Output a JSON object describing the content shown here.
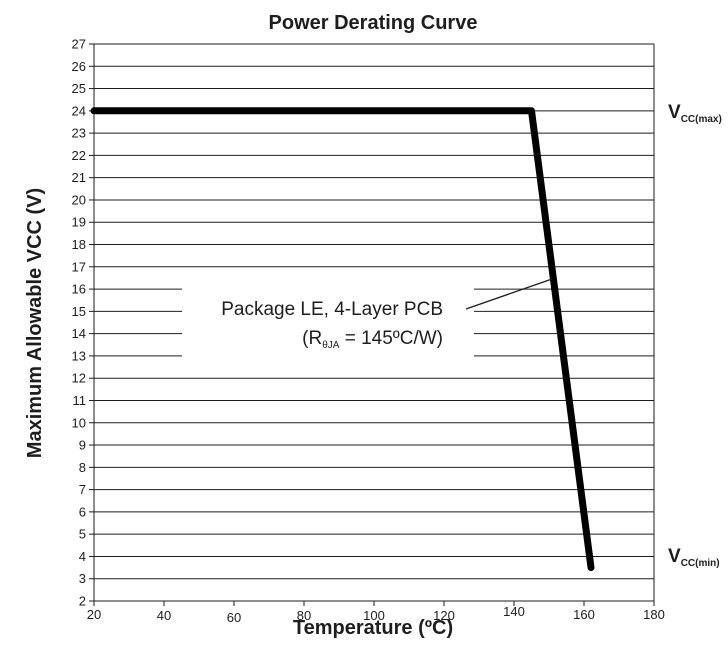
{
  "chart_data": {
    "type": "line",
    "title": "Power Derating Curve",
    "xlabel": "Temperature (ºC)",
    "ylabel": "Maximum Allowable VCC (V)",
    "xlim": [
      20,
      180
    ],
    "ylim": [
      2,
      27
    ],
    "x_ticks": [
      "20",
      "40",
      "60",
      "80",
      "100",
      "120",
      "140",
      "160",
      "180"
    ],
    "y_ticks": [
      "2",
      "3",
      "4",
      "5",
      "6",
      "7",
      "8",
      "9",
      "10",
      "11",
      "12",
      "13",
      "14",
      "15",
      "16",
      "17",
      "18",
      "19",
      "20",
      "21",
      "22",
      "23",
      "24",
      "25",
      "26",
      "27"
    ],
    "grid": "horizontal",
    "series": [
      {
        "x": [
          20,
          145,
          162
        ],
        "y": [
          24,
          24,
          3.5
        ],
        "color": "#000000"
      }
    ],
    "annotations": {
      "package_line1": "Package LE, 4-Layer PCB",
      "package_line2_prefix": "(R",
      "package_line2_sub": "θJA",
      "package_line2_suffix": " = 145ºC/W)",
      "vcc_max_main": "V",
      "vcc_max_sub": "CC(max)",
      "vcc_min_main": "V",
      "vcc_min_sub": "CC(min)"
    }
  }
}
